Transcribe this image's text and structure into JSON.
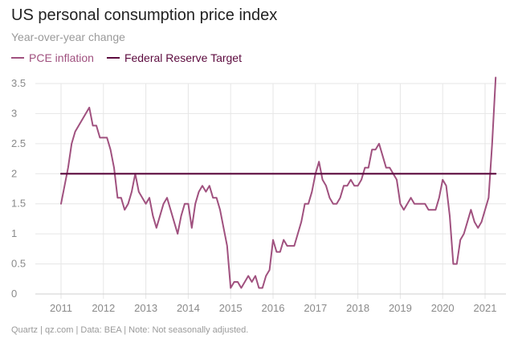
{
  "chart_data": {
    "type": "line",
    "title": "US personal consumption price index",
    "subtitle": "Year-over-year change",
    "xlabel": "",
    "ylabel": "",
    "ylim": [
      0,
      3.5
    ],
    "xlim": [
      2010.75,
      2021.3
    ],
    "y_ticks": [
      "0",
      "0.5",
      "1",
      "1.5",
      "2",
      "2.5",
      "3",
      "3.5"
    ],
    "x_ticks": [
      "2011",
      "2012",
      "2013",
      "2014",
      "2015",
      "2016",
      "2017",
      "2018",
      "2019",
      "2020",
      "2021"
    ],
    "series": [
      {
        "name": "PCE inflation",
        "color": "#a0517f",
        "points": [
          [
            2011.0,
            1.5
          ],
          [
            2011.083,
            1.8
          ],
          [
            2011.167,
            2.1
          ],
          [
            2011.25,
            2.5
          ],
          [
            2011.333,
            2.7
          ],
          [
            2011.417,
            2.8
          ],
          [
            2011.5,
            2.9
          ],
          [
            2011.583,
            3.0
          ],
          [
            2011.667,
            3.1
          ],
          [
            2011.75,
            2.8
          ],
          [
            2011.833,
            2.8
          ],
          [
            2011.917,
            2.6
          ],
          [
            2012.0,
            2.6
          ],
          [
            2012.083,
            2.6
          ],
          [
            2012.167,
            2.4
          ],
          [
            2012.25,
            2.1
          ],
          [
            2012.333,
            1.6
          ],
          [
            2012.417,
            1.6
          ],
          [
            2012.5,
            1.4
          ],
          [
            2012.583,
            1.5
          ],
          [
            2012.667,
            1.7
          ],
          [
            2012.75,
            2.0
          ],
          [
            2012.833,
            1.7
          ],
          [
            2012.917,
            1.6
          ],
          [
            2013.0,
            1.5
          ],
          [
            2013.083,
            1.6
          ],
          [
            2013.167,
            1.3
          ],
          [
            2013.25,
            1.1
          ],
          [
            2013.333,
            1.3
          ],
          [
            2013.417,
            1.5
          ],
          [
            2013.5,
            1.6
          ],
          [
            2013.583,
            1.4
          ],
          [
            2013.667,
            1.2
          ],
          [
            2013.75,
            1.0
          ],
          [
            2013.833,
            1.3
          ],
          [
            2013.917,
            1.5
          ],
          [
            2014.0,
            1.5
          ],
          [
            2014.083,
            1.1
          ],
          [
            2014.167,
            1.5
          ],
          [
            2014.25,
            1.7
          ],
          [
            2014.333,
            1.8
          ],
          [
            2014.417,
            1.7
          ],
          [
            2014.5,
            1.8
          ],
          [
            2014.583,
            1.6
          ],
          [
            2014.667,
            1.6
          ],
          [
            2014.75,
            1.4
          ],
          [
            2014.833,
            1.1
          ],
          [
            2014.917,
            0.8
          ],
          [
            2015.0,
            0.1
          ],
          [
            2015.083,
            0.2
          ],
          [
            2015.167,
            0.2
          ],
          [
            2015.25,
            0.1
          ],
          [
            2015.333,
            0.2
          ],
          [
            2015.417,
            0.3
          ],
          [
            2015.5,
            0.2
          ],
          [
            2015.583,
            0.3
          ],
          [
            2015.667,
            0.1
          ],
          [
            2015.75,
            0.1
          ],
          [
            2015.833,
            0.3
          ],
          [
            2015.917,
            0.4
          ],
          [
            2016.0,
            0.9
          ],
          [
            2016.083,
            0.7
          ],
          [
            2016.167,
            0.7
          ],
          [
            2016.25,
            0.9
          ],
          [
            2016.333,
            0.8
          ],
          [
            2016.417,
            0.8
          ],
          [
            2016.5,
            0.8
          ],
          [
            2016.583,
            1.0
          ],
          [
            2016.667,
            1.2
          ],
          [
            2016.75,
            1.5
          ],
          [
            2016.833,
            1.5
          ],
          [
            2016.917,
            1.7
          ],
          [
            2017.0,
            2.0
          ],
          [
            2017.083,
            2.2
          ],
          [
            2017.167,
            1.9
          ],
          [
            2017.25,
            1.8
          ],
          [
            2017.333,
            1.6
          ],
          [
            2017.417,
            1.5
          ],
          [
            2017.5,
            1.5
          ],
          [
            2017.583,
            1.6
          ],
          [
            2017.667,
            1.8
          ],
          [
            2017.75,
            1.8
          ],
          [
            2017.833,
            1.9
          ],
          [
            2017.917,
            1.8
          ],
          [
            2018.0,
            1.8
          ],
          [
            2018.083,
            1.9
          ],
          [
            2018.167,
            2.1
          ],
          [
            2018.25,
            2.1
          ],
          [
            2018.333,
            2.4
          ],
          [
            2018.417,
            2.4
          ],
          [
            2018.5,
            2.5
          ],
          [
            2018.583,
            2.3
          ],
          [
            2018.667,
            2.1
          ],
          [
            2018.75,
            2.1
          ],
          [
            2018.833,
            2.0
          ],
          [
            2018.917,
            1.9
          ],
          [
            2019.0,
            1.5
          ],
          [
            2019.083,
            1.4
          ],
          [
            2019.167,
            1.5
          ],
          [
            2019.25,
            1.6
          ],
          [
            2019.333,
            1.5
          ],
          [
            2019.417,
            1.5
          ],
          [
            2019.5,
            1.5
          ],
          [
            2019.583,
            1.5
          ],
          [
            2019.667,
            1.4
          ],
          [
            2019.75,
            1.4
          ],
          [
            2019.833,
            1.4
          ],
          [
            2019.917,
            1.6
          ],
          [
            2020.0,
            1.9
          ],
          [
            2020.083,
            1.8
          ],
          [
            2020.167,
            1.3
          ],
          [
            2020.25,
            0.5
          ],
          [
            2020.333,
            0.5
          ],
          [
            2020.417,
            0.9
          ],
          [
            2020.5,
            1.0
          ],
          [
            2020.583,
            1.2
          ],
          [
            2020.667,
            1.4
          ],
          [
            2020.75,
            1.2
          ],
          [
            2020.833,
            1.1
          ],
          [
            2020.917,
            1.2
          ],
          [
            2021.0,
            1.4
          ],
          [
            2021.083,
            1.6
          ],
          [
            2021.167,
            2.5
          ],
          [
            2021.25,
            3.6
          ]
        ]
      },
      {
        "name": "Federal Reserve Target",
        "color": "#5c0a3e",
        "points": [
          [
            2011.0,
            2.0
          ],
          [
            2021.25,
            2.0
          ]
        ]
      }
    ],
    "grid": true,
    "legend": "top-left",
    "source": "Quartz | qz.com | Data: BEA | Note: Not seasonally adjusted."
  }
}
